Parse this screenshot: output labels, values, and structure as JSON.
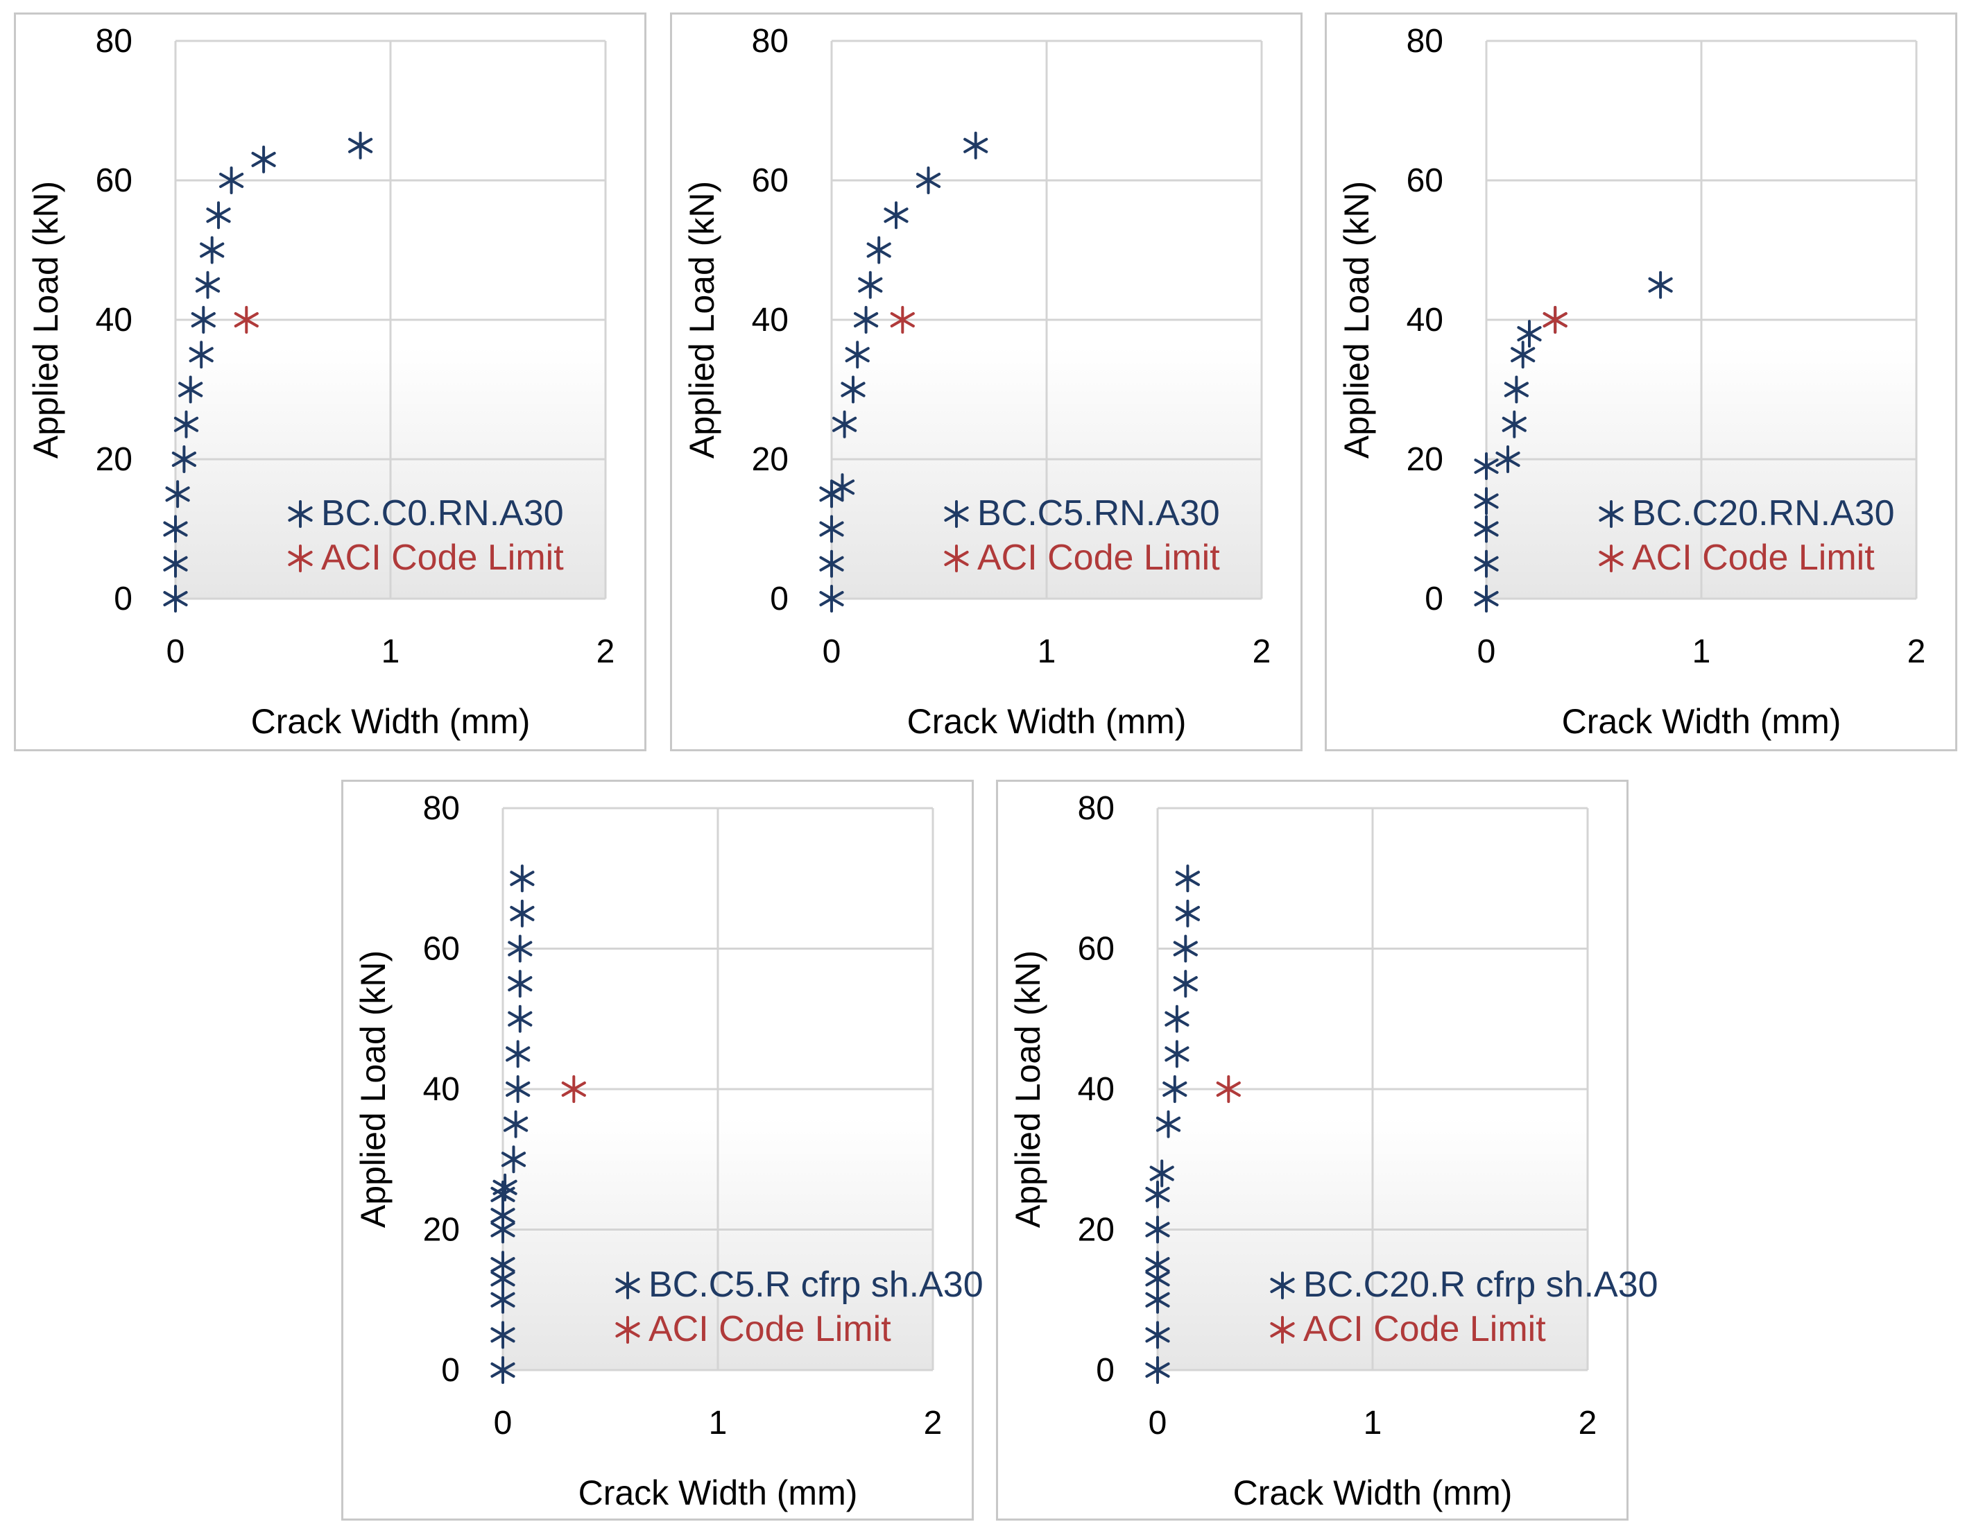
{
  "chart_data": [
    {
      "type": "scatter",
      "xlabel": "Crack Width (mm)",
      "ylabel": "Applied Load (kN)",
      "xlim": [
        0,
        2
      ],
      "ylim": [
        0,
        80
      ],
      "xticks": [
        "0",
        "1",
        "2"
      ],
      "yticks": [
        "0",
        "20",
        "40",
        "60",
        "80"
      ],
      "grid": true,
      "legend_position": "bottom-right",
      "series": [
        {
          "name": "BC.C0.RN.A30",
          "color": "#1f3a64",
          "points": [
            [
              0,
              0
            ],
            [
              0,
              5
            ],
            [
              0,
              10
            ],
            [
              0.01,
              15
            ],
            [
              0.04,
              20
            ],
            [
              0.05,
              25
            ],
            [
              0.07,
              30
            ],
            [
              0.12,
              35
            ],
            [
              0.13,
              40
            ],
            [
              0.15,
              45
            ],
            [
              0.17,
              50
            ],
            [
              0.2,
              55
            ],
            [
              0.26,
              60
            ],
            [
              0.41,
              63
            ],
            [
              0.86,
              65
            ]
          ]
        },
        {
          "name": "ACI Code Limit",
          "color": "#b03a3a",
          "points": [
            [
              0.33,
              40
            ]
          ]
        }
      ]
    },
    {
      "type": "scatter",
      "xlabel": "Crack Width (mm)",
      "ylabel": "Applied Load (kN)",
      "xlim": [
        0,
        2
      ],
      "ylim": [
        0,
        80
      ],
      "xticks": [
        "0",
        "1",
        "2"
      ],
      "yticks": [
        "0",
        "20",
        "40",
        "60",
        "80"
      ],
      "grid": true,
      "legend_position": "bottom-right",
      "series": [
        {
          "name": "BC.C5.RN.A30",
          "color": "#1f3a64",
          "points": [
            [
              0,
              0
            ],
            [
              0,
              5
            ],
            [
              0,
              10
            ],
            [
              0,
              15
            ],
            [
              0.05,
              16
            ],
            [
              0.06,
              25
            ],
            [
              0.1,
              30
            ],
            [
              0.12,
              35
            ],
            [
              0.16,
              40
            ],
            [
              0.18,
              45
            ],
            [
              0.22,
              50
            ],
            [
              0.3,
              55
            ],
            [
              0.45,
              60
            ],
            [
              0.67,
              65
            ]
          ]
        },
        {
          "name": "ACI Code Limit",
          "color": "#b03a3a",
          "points": [
            [
              0.33,
              40
            ]
          ]
        }
      ]
    },
    {
      "type": "scatter",
      "xlabel": "Crack Width (mm)",
      "ylabel": "Applied Load (kN)",
      "xlim": [
        0,
        2
      ],
      "ylim": [
        0,
        80
      ],
      "xticks": [
        "0",
        "1",
        "2"
      ],
      "yticks": [
        "0",
        "20",
        "40",
        "60",
        "80"
      ],
      "grid": true,
      "legend_position": "bottom-right",
      "series": [
        {
          "name": "BC.C20.RN.A30",
          "color": "#1f3a64",
          "points": [
            [
              0,
              0
            ],
            [
              0,
              5
            ],
            [
              0,
              10
            ],
            [
              0,
              14
            ],
            [
              0,
              19
            ],
            [
              0.1,
              20
            ],
            [
              0.13,
              25
            ],
            [
              0.14,
              30
            ],
            [
              0.17,
              35
            ],
            [
              0.2,
              38
            ],
            [
              0.32,
              40
            ],
            [
              0.81,
              45
            ]
          ]
        },
        {
          "name": "ACI Code Limit",
          "color": "#b03a3a",
          "points": [
            [
              0.32,
              40
            ]
          ]
        }
      ]
    },
    {
      "type": "scatter",
      "xlabel": "Crack Width (mm)",
      "ylabel": "Applied Load (kN)",
      "xlim": [
        0,
        2
      ],
      "ylim": [
        0,
        80
      ],
      "xticks": [
        "0",
        "1",
        "2"
      ],
      "yticks": [
        "0",
        "20",
        "40",
        "60",
        "80"
      ],
      "grid": true,
      "legend_position": "bottom-right",
      "series": [
        {
          "name": "BC.C5.R cfrp sh.A30",
          "color": "#1f3a64",
          "points": [
            [
              0,
              0
            ],
            [
              0,
              5
            ],
            [
              0,
              10
            ],
            [
              0,
              13
            ],
            [
              0,
              15
            ],
            [
              0,
              20
            ],
            [
              0,
              22
            ],
            [
              0,
              25
            ],
            [
              0.01,
              26
            ],
            [
              0.05,
              30
            ],
            [
              0.06,
              35
            ],
            [
              0.07,
              40
            ],
            [
              0.07,
              45
            ],
            [
              0.08,
              50
            ],
            [
              0.08,
              55
            ],
            [
              0.08,
              60
            ],
            [
              0.09,
              65
            ],
            [
              0.09,
              70
            ]
          ]
        },
        {
          "name": "ACI Code Limit",
          "color": "#b03a3a",
          "points": [
            [
              0.33,
              40
            ]
          ]
        }
      ]
    },
    {
      "type": "scatter",
      "xlabel": "Crack Width (mm)",
      "ylabel": "Applied Load (kN)",
      "xlim": [
        0,
        2
      ],
      "ylim": [
        0,
        80
      ],
      "xticks": [
        "0",
        "1",
        "2"
      ],
      "yticks": [
        "0",
        "20",
        "40",
        "60",
        "80"
      ],
      "grid": true,
      "legend_position": "bottom-right",
      "series": [
        {
          "name": "BC.C20.R cfrp sh.A30",
          "color": "#1f3a64",
          "points": [
            [
              0,
              0
            ],
            [
              0,
              5
            ],
            [
              0,
              10
            ],
            [
              0,
              13
            ],
            [
              0,
              15
            ],
            [
              0,
              20
            ],
            [
              0,
              25
            ],
            [
              0.02,
              28
            ],
            [
              0.05,
              35
            ],
            [
              0.08,
              40
            ],
            [
              0.09,
              45
            ],
            [
              0.09,
              50
            ],
            [
              0.13,
              55
            ],
            [
              0.13,
              60
            ],
            [
              0.14,
              65
            ],
            [
              0.14,
              70
            ]
          ]
        },
        {
          "name": "ACI Code Limit",
          "color": "#b03a3a",
          "points": [
            [
              0.33,
              40
            ]
          ]
        }
      ]
    }
  ]
}
